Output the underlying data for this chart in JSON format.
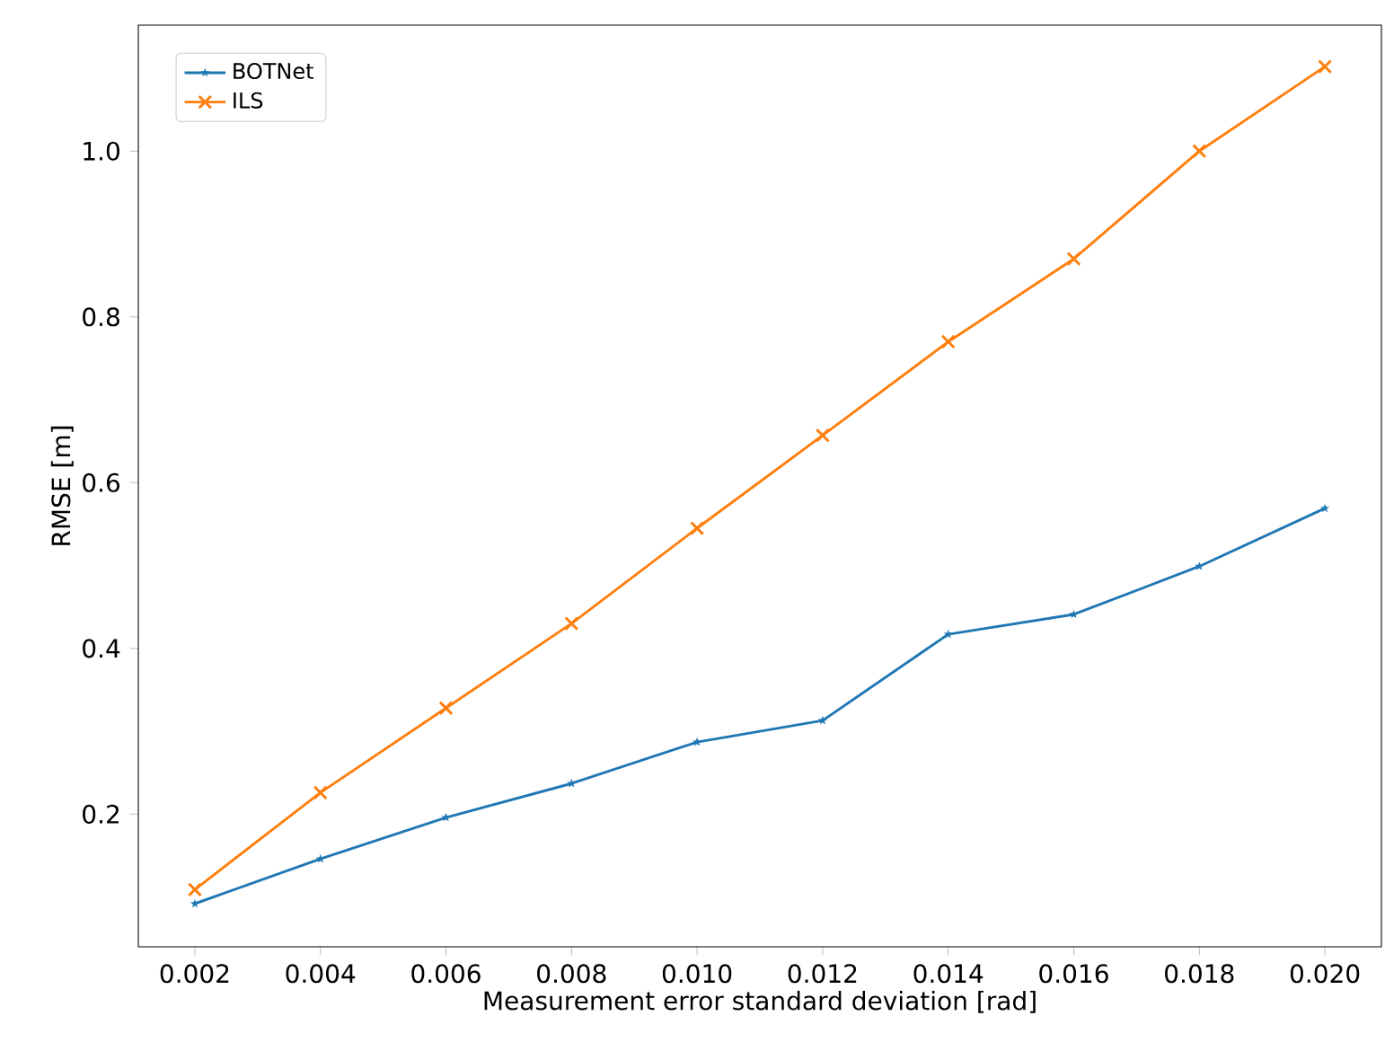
{
  "chart_data": {
    "type": "line",
    "xlabel": "Measurement error standard deviation [rad]",
    "ylabel": "RMSE [m]",
    "x": [
      0.002,
      0.004,
      0.006,
      0.008,
      0.01,
      0.012,
      0.014,
      0.016,
      0.018,
      0.02
    ],
    "series": [
      {
        "name": "BOTNet",
        "color": "#1f77b4",
        "marker": "star",
        "values": [
          0.092,
          0.146,
          0.196,
          0.237,
          0.287,
          0.313,
          0.417,
          0.441,
          0.499,
          0.569
        ]
      },
      {
        "name": "ILS",
        "color": "#ff7f0e",
        "marker": "cross",
        "values": [
          0.109,
          0.226,
          0.328,
          0.43,
          0.545,
          0.657,
          0.77,
          0.87,
          1.0,
          1.102
        ]
      }
    ],
    "xlim": [
      0.0011,
      0.0209
    ],
    "ylim": [
      0.04,
      1.152
    ],
    "xticks": [
      {
        "value": 0.002,
        "label": "0.002"
      },
      {
        "value": 0.004,
        "label": "0.004"
      },
      {
        "value": 0.006,
        "label": "0.006"
      },
      {
        "value": 0.008,
        "label": "0.008"
      },
      {
        "value": 0.01,
        "label": "0.010"
      },
      {
        "value": 0.012,
        "label": "0.012"
      },
      {
        "value": 0.014,
        "label": "0.014"
      },
      {
        "value": 0.016,
        "label": "0.016"
      },
      {
        "value": 0.018,
        "label": "0.018"
      },
      {
        "value": 0.02,
        "label": "0.020"
      }
    ],
    "yticks": [
      0.2,
      0.4,
      0.6,
      0.8,
      {
        "value": 1.0,
        "label": "1.0"
      }
    ],
    "legend": "top left",
    "grid": false,
    "line_style": "solid"
  }
}
